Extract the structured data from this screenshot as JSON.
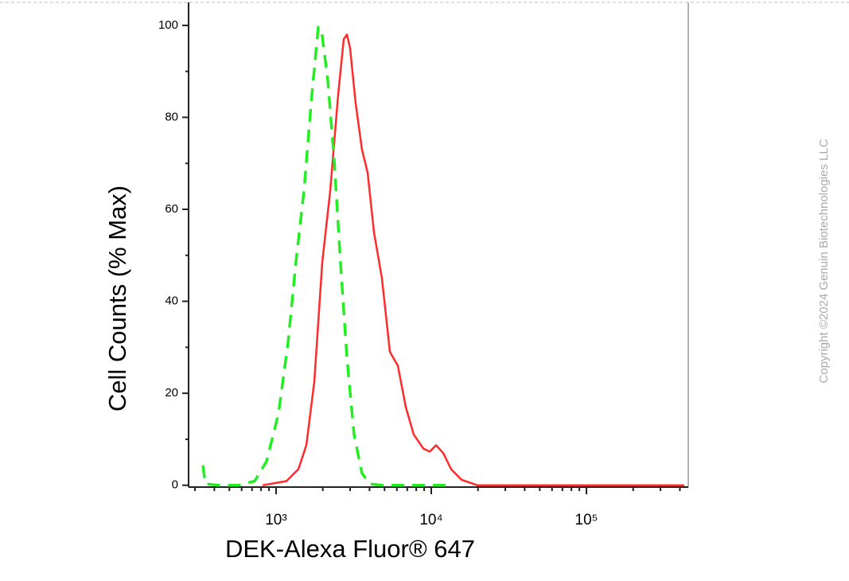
{
  "chart_data": {
    "type": "line",
    "x_label": "DEK-Alexa Fluor® 647",
    "y_label": "Cell Counts (% Max)",
    "watermark": "Copyright ©2024 Genuin Biotechnologies LLC",
    "xscale": "log",
    "xlim": [
      273,
      453000
    ],
    "xticks": [
      {
        "value": 1000,
        "label": "10³"
      },
      {
        "value": 10000,
        "label": "10⁴"
      },
      {
        "value": 100000,
        "label": "10⁵"
      }
    ],
    "xminorticks": [
      300,
      400,
      500,
      600,
      700,
      800,
      900,
      2000,
      3000,
      4000,
      5000,
      6000,
      7000,
      8000,
      9000,
      20000,
      30000,
      40000,
      50000,
      60000,
      70000,
      80000,
      90000,
      200000,
      300000,
      400000
    ],
    "ylim": [
      -0.4,
      105
    ],
    "yticks": [
      0,
      20,
      40,
      60,
      80,
      100
    ],
    "yminorticks": [
      10,
      30,
      50,
      70,
      90
    ],
    "series": [
      {
        "color": "#ff2a2a",
        "dash": false,
        "x": [
          818,
          1166,
          1392,
          1566,
          1763,
          1984,
          2233,
          2512,
          2729,
          2860,
          2998,
          3258,
          3578,
          3890,
          4276,
          4810,
          5412,
          6090,
          6850,
          7710,
          8890,
          9770,
          10740,
          11940,
          13430,
          15670,
          19820,
          64600,
          427000
        ],
        "values": [
          0,
          0.9,
          3.5,
          8.7,
          22.5,
          48.5,
          64,
          85,
          97,
          98,
          95,
          83,
          73,
          68,
          55,
          45,
          29,
          26,
          17,
          11,
          8,
          7.3,
          8.7,
          7,
          3.5,
          1.2,
          0,
          0,
          0
        ]
      },
      {
        "color": "#22ee22",
        "dash": true,
        "x": [
          338,
          350,
          427,
          574,
          727,
          868,
          1036,
          1194,
          1343,
          1512,
          1702,
          1870,
          1960,
          2154,
          2367,
          2600,
          2860,
          3180,
          3578,
          4030,
          4810,
          13900
        ],
        "values": [
          4.3,
          0.3,
          0,
          0,
          0.9,
          5.2,
          15.6,
          31,
          48.5,
          64,
          85,
          99.6,
          99,
          88,
          71,
          48.5,
          27.7,
          11,
          2.6,
          0.3,
          0,
          0
        ]
      }
    ]
  }
}
